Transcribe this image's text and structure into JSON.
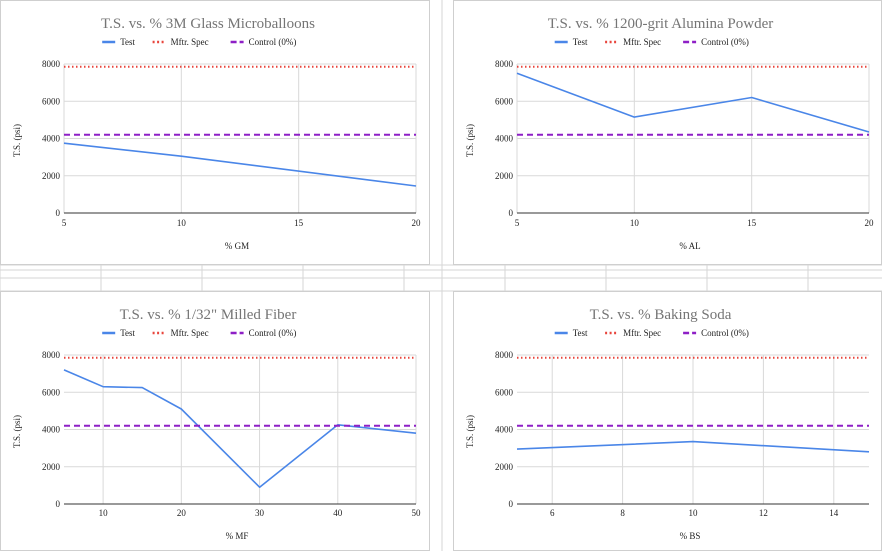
{
  "colors": {
    "test": "#4a86e8",
    "spec": "#e8453c",
    "control": "#8e1fc6",
    "grid": "#d9d9d9",
    "sheet_grid": "#d6d6d6"
  },
  "legend": {
    "test": "Test",
    "spec": "Mftr. Spec",
    "control": "Control (0%)"
  },
  "chart_data": [
    {
      "type": "line",
      "title": "T.S. vs. % 3M Glass Microballoons",
      "xlabel": "% GM",
      "ylabel": "T.S. (psi)",
      "xlim": [
        5,
        20
      ],
      "ylim": [
        0,
        8000
      ],
      "xticks": [
        5,
        10,
        15,
        20
      ],
      "yticks": [
        0,
        2000,
        4000,
        6000,
        8000
      ],
      "legend_position": "top",
      "grid": true,
      "series": [
        {
          "name": "Test",
          "x": [
            5,
            10,
            20
          ],
          "y": [
            3750,
            3050,
            1450
          ]
        },
        {
          "name": "Mftr. Spec",
          "x": [
            5,
            20
          ],
          "y": [
            7850,
            7850
          ]
        },
        {
          "name": "Control (0%)",
          "x": [
            5,
            20
          ],
          "y": [
            4200,
            4200
          ]
        }
      ]
    },
    {
      "type": "line",
      "title": "T.S. vs. % 1200-grit Alumina Powder",
      "xlabel": "% AL",
      "ylabel": "T.S. (psi)",
      "xlim": [
        5,
        20
      ],
      "ylim": [
        0,
        8000
      ],
      "xticks": [
        5,
        10,
        15,
        20
      ],
      "yticks": [
        0,
        2000,
        4000,
        6000,
        8000
      ],
      "legend_position": "top",
      "grid": true,
      "series": [
        {
          "name": "Test",
          "x": [
            5,
            10,
            15,
            20
          ],
          "y": [
            7500,
            5150,
            6200,
            4350
          ]
        },
        {
          "name": "Mftr. Spec",
          "x": [
            5,
            20
          ],
          "y": [
            7850,
            7850
          ]
        },
        {
          "name": "Control (0%)",
          "x": [
            5,
            20
          ],
          "y": [
            4200,
            4200
          ]
        }
      ]
    },
    {
      "type": "line",
      "title": "T.S. vs. % 1/32\" Milled Fiber",
      "xlabel": "% MF",
      "ylabel": "T.S. (psi)",
      "xlim": [
        5,
        50
      ],
      "ylim": [
        0,
        8000
      ],
      "xticks": [
        10,
        20,
        30,
        40,
        50
      ],
      "yticks": [
        0,
        2000,
        4000,
        6000,
        8000
      ],
      "legend_position": "top",
      "grid": true,
      "series": [
        {
          "name": "Test",
          "x": [
            5,
            10,
            15,
            20,
            30,
            40,
            50
          ],
          "y": [
            7200,
            6300,
            6250,
            5100,
            900,
            4250,
            3800
          ]
        },
        {
          "name": "Mftr. Spec",
          "x": [
            5,
            50
          ],
          "y": [
            7850,
            7850
          ]
        },
        {
          "name": "Control (0%)",
          "x": [
            5,
            50
          ],
          "y": [
            4200,
            4200
          ]
        }
      ]
    },
    {
      "type": "line",
      "title": "T.S. vs. % Baking Soda",
      "xlabel": "% BS",
      "ylabel": "T.S. (psi)",
      "xlim": [
        5,
        15
      ],
      "ylim": [
        0,
        8000
      ],
      "xticks": [
        6,
        8,
        10,
        12,
        14
      ],
      "yticks": [
        0,
        2000,
        4000,
        6000,
        8000
      ],
      "legend_position": "top",
      "grid": true,
      "series": [
        {
          "name": "Test",
          "x": [
            5,
            10,
            15
          ],
          "y": [
            2950,
            3350,
            2800
          ]
        },
        {
          "name": "Mftr. Spec",
          "x": [
            5,
            15
          ],
          "y": [
            7850,
            7850
          ]
        },
        {
          "name": "Control (0%)",
          "x": [
            5,
            15
          ],
          "y": [
            4200,
            4200
          ]
        }
      ]
    }
  ]
}
